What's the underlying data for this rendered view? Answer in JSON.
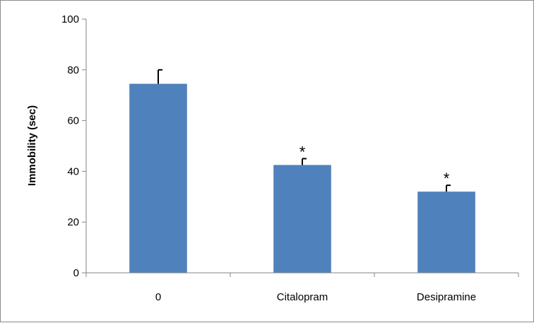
{
  "chart_data": {
    "type": "bar",
    "title": "",
    "xlabel": "",
    "ylabel": "Immobility (sec)",
    "ylim": [
      0,
      100
    ],
    "yticks": [
      0,
      20,
      40,
      60,
      80,
      100
    ],
    "grid": false,
    "legend": "none",
    "bar_color": "#4f81bd",
    "categories": [
      "0",
      "Citalopram",
      "Desipramine"
    ],
    "values": [
      74.5,
      42.5,
      32
    ],
    "error_upper": [
      5.5,
      2.5,
      2.5
    ],
    "annotations": [
      "",
      "*",
      "*"
    ]
  }
}
